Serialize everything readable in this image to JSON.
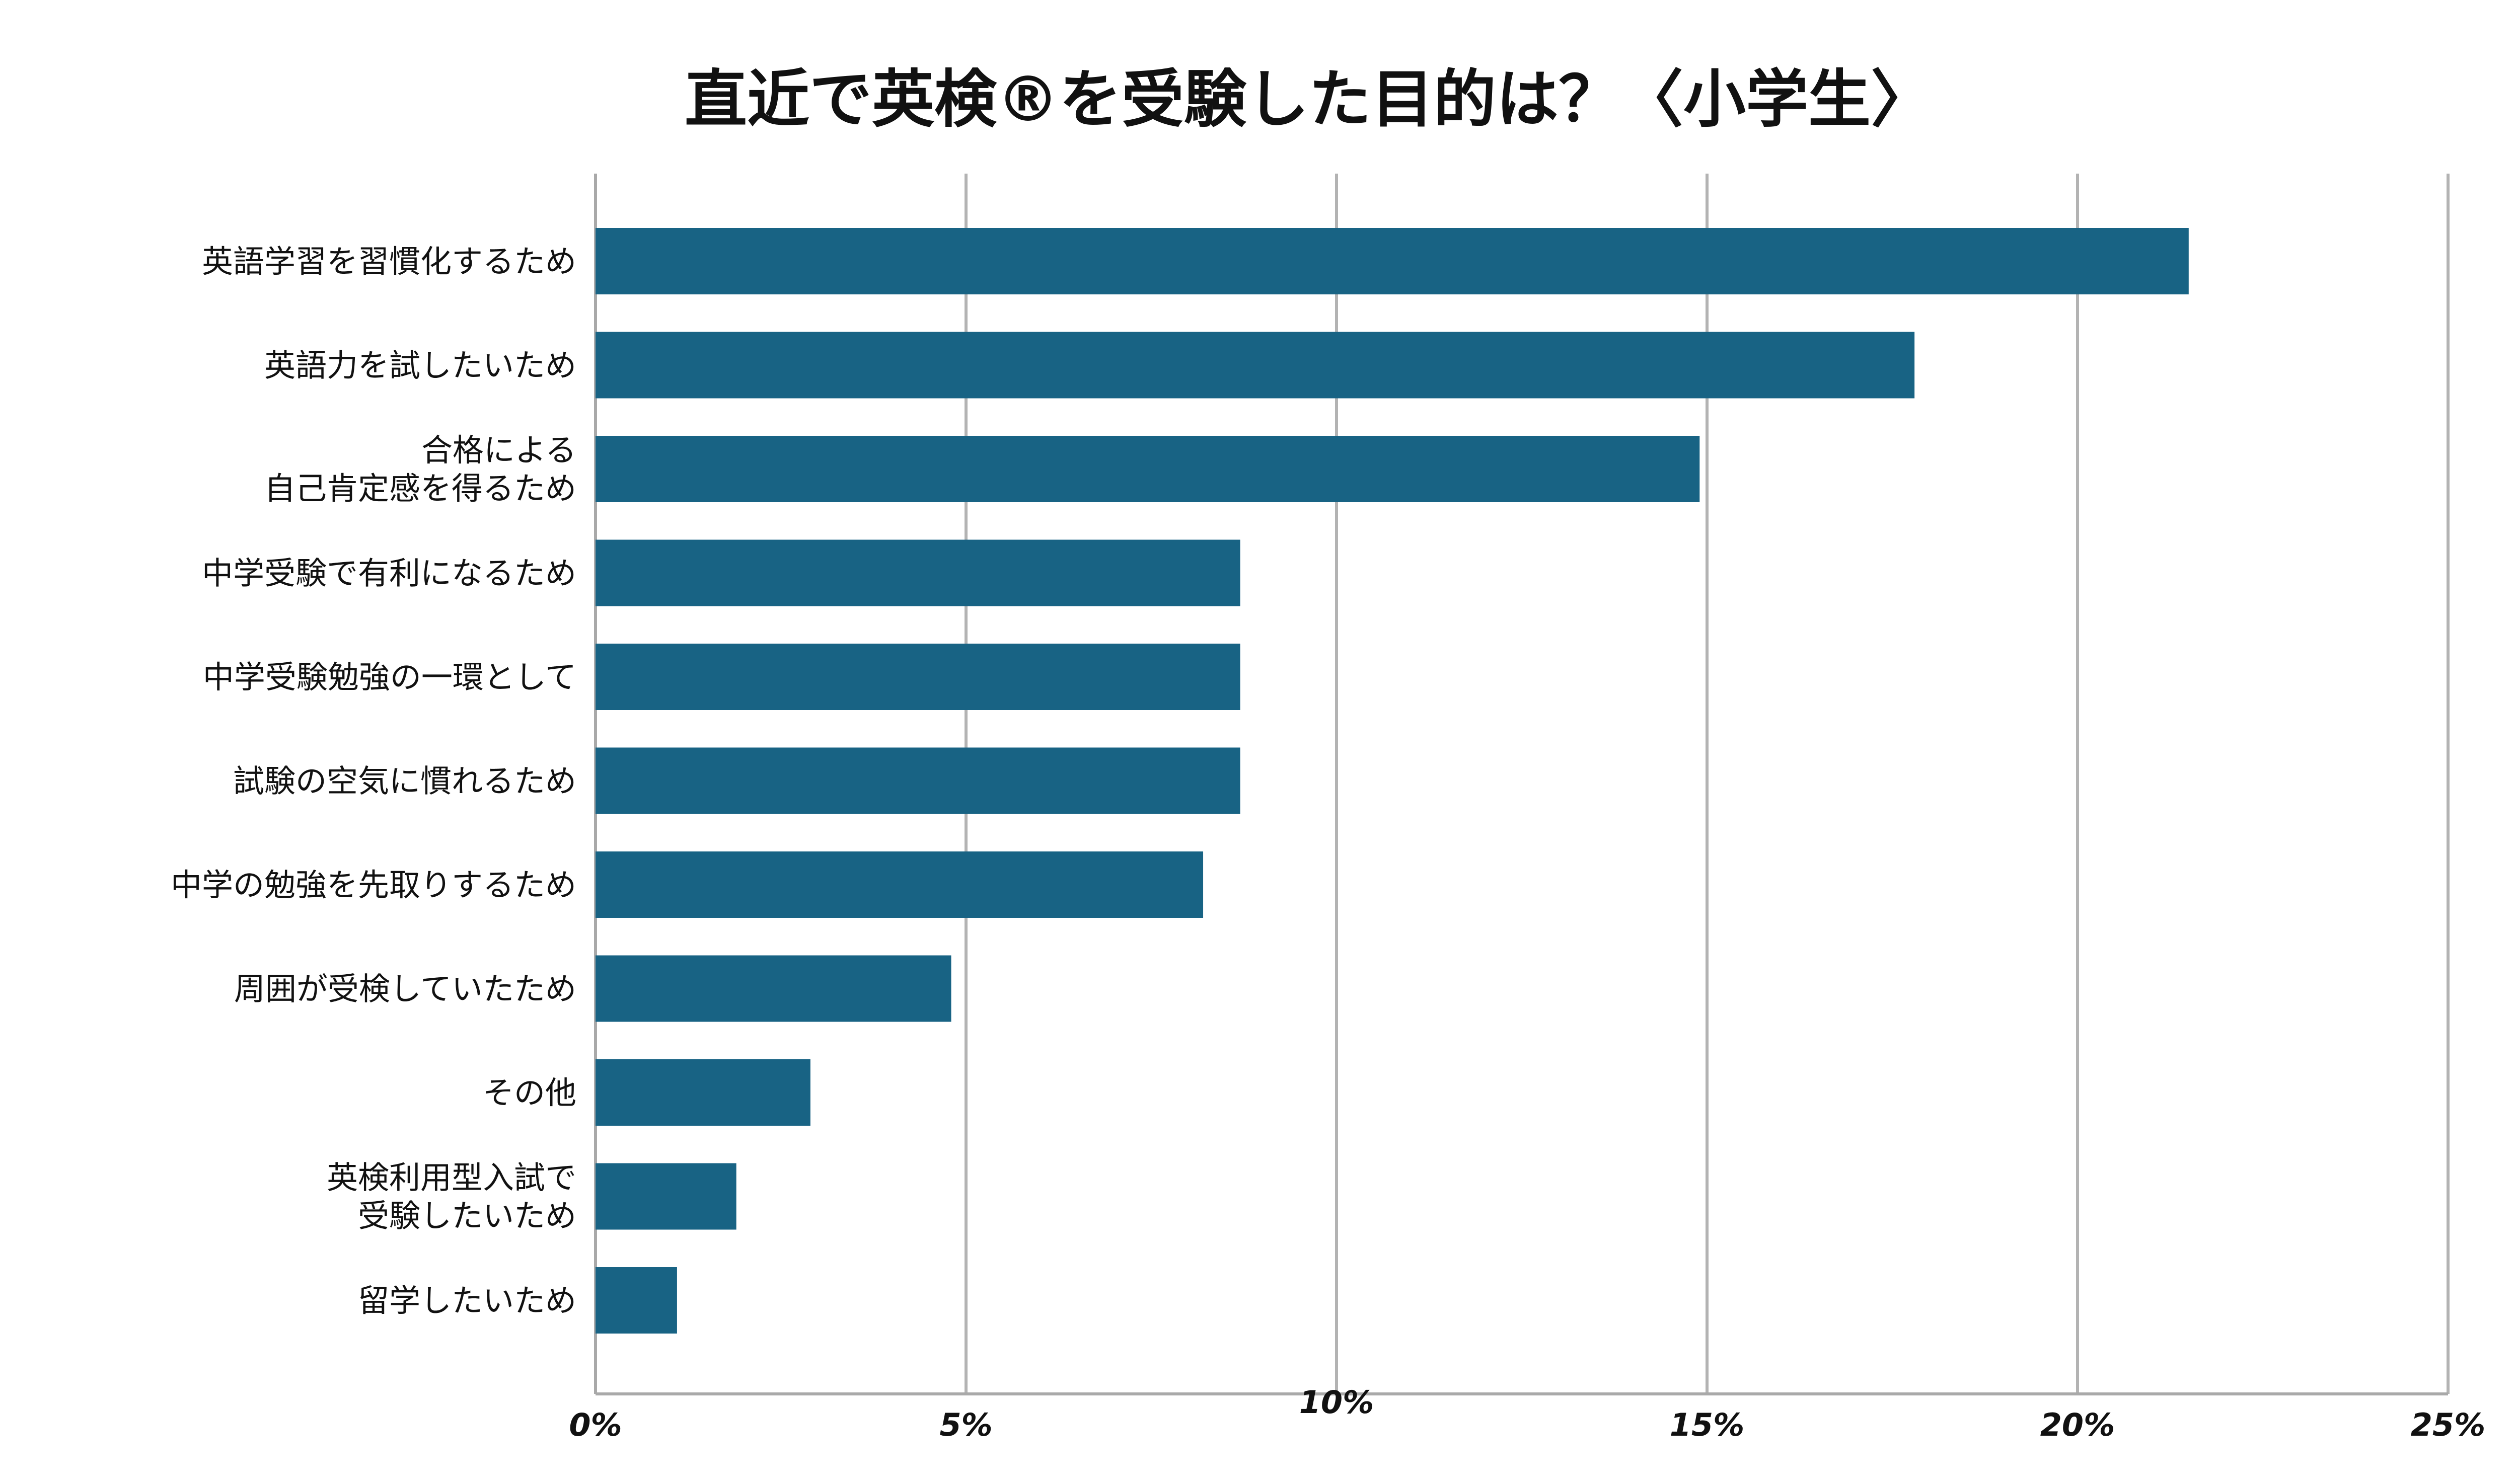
{
  "chart_data": {
    "type": "bar",
    "orientation": "horizontal",
    "title": "直近で英検®を受験した目的は？〈小学生〉",
    "xlabel": "",
    "ylabel": "",
    "categories": [
      "英語学習を習慣化するため",
      "英語力を試したいため",
      "合格による\n自己肯定感を得るため",
      "中学受験で有利になるため",
      "中学受験勉強の一環として",
      "試験の空気に慣れるため",
      "中学の勉強を先取りするため",
      "周囲が受検していたため",
      "その他",
      "英検利用型入試で\n受験したいため",
      "留学したいため"
    ],
    "values": [
      21.5,
      17.8,
      14.9,
      8.7,
      8.7,
      8.7,
      8.2,
      4.8,
      2.9,
      1.9,
      1.1
    ],
    "xlim": [
      0,
      25
    ],
    "xticks": [
      0,
      5,
      10,
      15,
      20,
      25
    ],
    "tick_labels": [
      "0%",
      "5%",
      "10%",
      "15%",
      "20%",
      "25%"
    ],
    "grid": "vertical",
    "legend": "none",
    "colors": {
      "bar": "#186384",
      "grid": "#b3b3b3",
      "axis": "#a9a9a9"
    }
  }
}
